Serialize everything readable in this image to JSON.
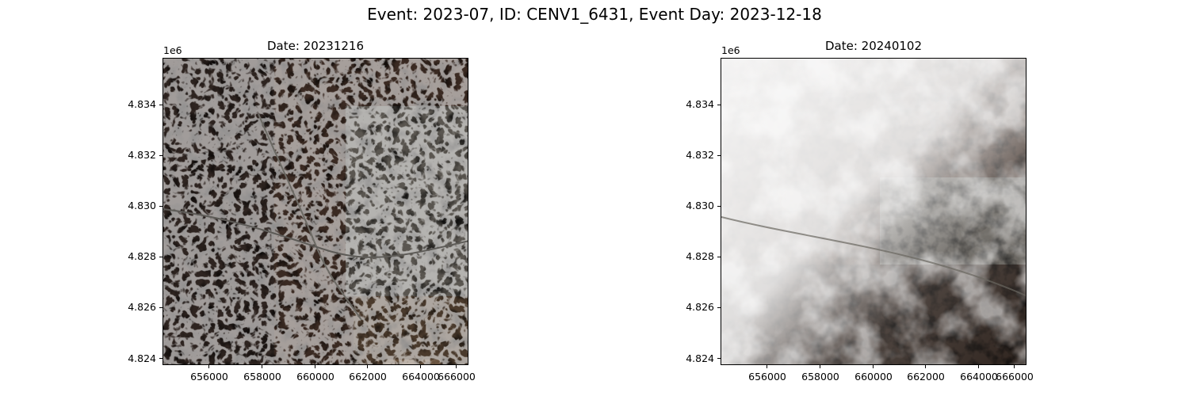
{
  "figure": {
    "suptitle": "Event: 2023-07, ID: CENV1_6431, Event Day: 2023-12-18"
  },
  "axes_common": {
    "y_offset_label": "1e6",
    "y_ticks": [
      "4.834",
      "4.832",
      "4.830",
      "4.828",
      "4.826",
      "4.824"
    ],
    "x_ticks": [
      "656000",
      "658000",
      "660000",
      "662000",
      "664000",
      "666000"
    ]
  },
  "panels": [
    {
      "title": "Date: 20231216",
      "image": "satellite-image-clear"
    },
    {
      "title": "Date: 20240102",
      "image": "satellite-image-cloudy"
    }
  ]
}
